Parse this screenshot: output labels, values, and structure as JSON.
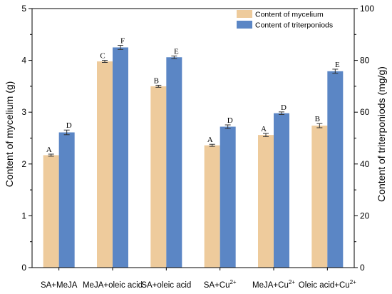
{
  "chart_data": {
    "type": "bar",
    "categories": [
      {
        "base": "SA+MeJA",
        "sup": ""
      },
      {
        "base": "MeJA+oleic acid",
        "sup": ""
      },
      {
        "base": "SA+oleic acid",
        "sup": ""
      },
      {
        "base": "SA+Cu",
        "sup": "2+"
      },
      {
        "base": "MeJA+Cu",
        "sup": "2+"
      },
      {
        "base": "Oleic acid+Cu",
        "sup": "2+"
      }
    ],
    "series": [
      {
        "name": "Content of mycelium",
        "axis": "left",
        "color": "#EECB9C",
        "values": [
          2.17,
          3.98,
          3.5,
          2.36,
          2.56,
          2.74
        ],
        "errors": [
          0.02,
          0.02,
          0.02,
          0.02,
          0.03,
          0.04
        ],
        "sig": [
          "A",
          "C",
          "B",
          "A",
          "A",
          "B"
        ]
      },
      {
        "name": "Content of triterponiods",
        "axis": "right",
        "color": "#5B86C5",
        "values": [
          52.2,
          85.0,
          81.2,
          54.4,
          59.6,
          75.8
        ],
        "errors": [
          0.9,
          0.8,
          0.5,
          0.7,
          0.5,
          0.8
        ],
        "sig": [
          "D",
          "F",
          "E",
          "D",
          "D",
          "E"
        ]
      }
    ],
    "ylabel_left": "Content of mycelium (g)",
    "ylabel_right": "Content of triterponiods (mg/g)",
    "ylim_left": [
      0,
      5
    ],
    "ylim_right": [
      0,
      100
    ],
    "yticks_left": [
      "0",
      "1",
      "2",
      "3",
      "4",
      "5"
    ],
    "yticks_right": [
      "0",
      "20",
      "40",
      "60",
      "80",
      "100"
    ],
    "legend_position": "top-right",
    "grid": false
  }
}
